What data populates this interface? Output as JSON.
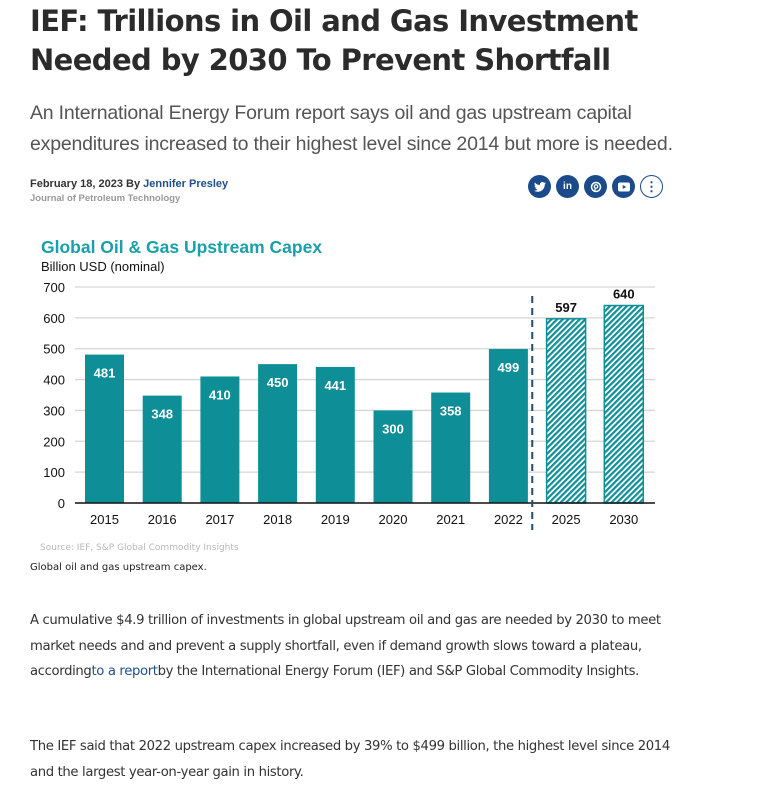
{
  "article": {
    "title": "IEF: Trillions in Oil and Gas Investment Needed by 2030 To Prevent Shortfall",
    "subtitle": "An International Energy Forum report says oil and gas upstream capital expenditures increased to their highest level since 2014 but more is needed.",
    "date": "February 18, 2023",
    "by_label": "By",
    "author": "Jennifer Presley",
    "publication": "Journal of Petroleum Technology",
    "figure_caption": "Global oil and gas upstream capex.",
    "paragraphs": [
      {
        "before": "A cumulative $4.9 trillion of investments in global upstream oil and gas are needed by 2030 to meet market needs and and prevent a supply shortfall, even if demand growth slows toward a plateau, according",
        "link": "to a report",
        "after": "by the International Energy Forum (IEF) and S&P Global Commodity Insights."
      },
      {
        "text": "The IEF said that 2022 upstream capex increased by 39% to $499 billion, the highest level since 2014 and the largest year-on-year gain in history."
      }
    ]
  },
  "social": [
    {
      "name": "twitter-icon",
      "glyph": "🐦"
    },
    {
      "name": "linkedin-icon",
      "glyph": "in"
    },
    {
      "name": "pinterest-icon",
      "glyph": "℗"
    },
    {
      "name": "youtube-icon",
      "glyph": "▶"
    },
    {
      "name": "more-options-icon",
      "glyph": "⋮"
    }
  ],
  "colors": {
    "brand_blue": "#1b4b8a",
    "bar_teal": "#0e8f97",
    "chart_title": "#1aa0aa"
  },
  "chart_data": {
    "type": "bar",
    "title": "Global Oil & Gas Upstream Capex",
    "ylabel": "Billion USD (nominal)",
    "xlabel": "",
    "source": "Source: IEF, S&P Global Commodity Insights",
    "categories": [
      "2015",
      "2016",
      "2017",
      "2018",
      "2019",
      "2020",
      "2021",
      "2022",
      "2025",
      "2030"
    ],
    "values": [
      481,
      348,
      410,
      450,
      441,
      300,
      358,
      499,
      597,
      640
    ],
    "projected": [
      false,
      false,
      false,
      false,
      false,
      false,
      false,
      false,
      true,
      true
    ],
    "ylim": [
      0,
      700
    ],
    "yticks": [
      0,
      100,
      200,
      300,
      400,
      500,
      600,
      700
    ],
    "grid": true,
    "divider_after": "2022",
    "legend": "none"
  }
}
